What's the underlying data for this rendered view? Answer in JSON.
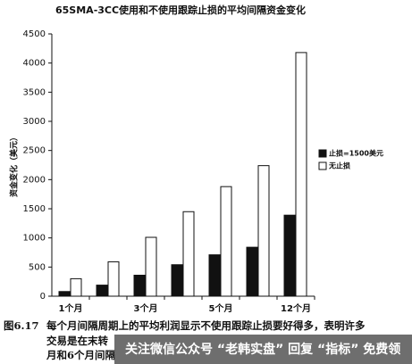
{
  "chart_data": {
    "type": "bar",
    "title": "65SMA-3CC使用和不使用跟踪止损的平均间隔资金变化",
    "y_label": "资金变化（美元）",
    "categories": [
      "1个月",
      null,
      "3个月",
      null,
      "5个月",
      null,
      "12个月"
    ],
    "series": [
      {
        "name": "止损=1500美元",
        "color": "#111111",
        "values": [
          80,
          190,
          360,
          540,
          710,
          840,
          1390
        ]
      },
      {
        "name": "无止损",
        "color": "#ffffff",
        "values": [
          300,
          590,
          1010,
          1450,
          1880,
          2240,
          4180
        ]
      }
    ],
    "ylim": [
      0,
      4500
    ],
    "yticks": [
      0,
      500,
      1000,
      1500,
      2000,
      2500,
      3000,
      3500,
      4000,
      4500
    ],
    "legend": "right"
  },
  "caption": {
    "number": "图6.17",
    "lines": [
      "每个月间隔周期上的平均利润显示不使用跟踪止损要好得多，表明许多",
      "交易是在末转",
      "月和6个月间隔"
    ]
  },
  "watermark": "关注微信公众号 “老韩实盘” 回复 “指标” 免费领"
}
